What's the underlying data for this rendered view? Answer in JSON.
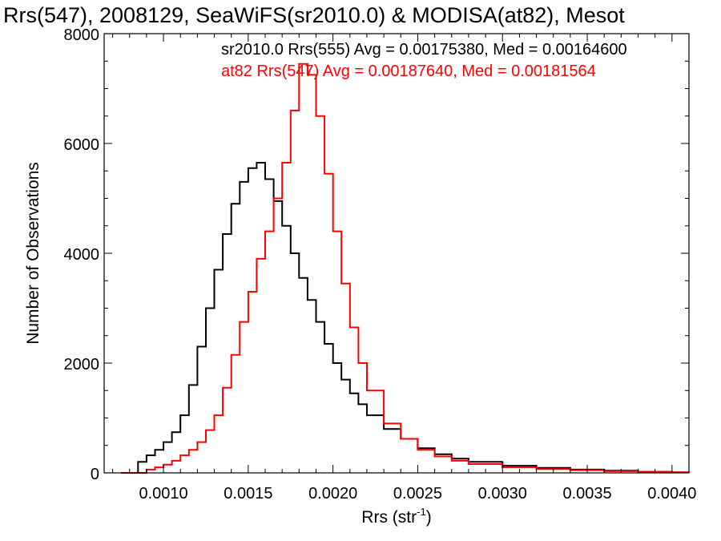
{
  "chart_data": {
    "type": "line",
    "title": "Rrs(547), 2008129, SeaWiFS(sr2010.0) & MODISA(at82), Mesot",
    "xlabel": "Rrs (str",
    "xlabel_sup": "-1",
    "xlabel_close": ")",
    "ylabel": "Number of Observations",
    "xlim": [
      0.00065,
      0.0041
    ],
    "ylim": [
      0,
      8000
    ],
    "x_ticks": [
      0.001,
      0.0015,
      0.002,
      0.0025,
      0.003,
      0.0035,
      0.004
    ],
    "x_tick_labels": [
      "0.0010",
      "0.0015",
      "0.0020",
      "0.0025",
      "0.0030",
      "0.0035",
      "0.0040"
    ],
    "y_ticks": [
      0,
      2000,
      4000,
      6000,
      8000
    ],
    "y_tick_labels": [
      "0",
      "2000",
      "4000",
      "6000",
      "8000"
    ],
    "grid": false,
    "legend_position": "top-right",
    "series": [
      {
        "name": "sr2010.0 Rrs(555) Avg = 0.00175380, Med = 0.00164600",
        "color": "#000000",
        "x": [
          0.00075,
          0.0008,
          0.00085,
          0.0009,
          0.00095,
          0.001,
          0.00105,
          0.0011,
          0.00115,
          0.0012,
          0.00125,
          0.0013,
          0.00135,
          0.0014,
          0.00145,
          0.0015,
          0.00155,
          0.0016,
          0.00165,
          0.0017,
          0.00175,
          0.0018,
          0.00185,
          0.0019,
          0.00195,
          0.002,
          0.00205,
          0.0021,
          0.00215,
          0.0022,
          0.0023,
          0.0024,
          0.0025,
          0.0026,
          0.0027,
          0.0028,
          0.003,
          0.0032,
          0.0034,
          0.0036,
          0.0038,
          0.004,
          0.0041
        ],
        "values": [
          0,
          0,
          200,
          320,
          420,
          560,
          740,
          1050,
          1600,
          2300,
          3000,
          3700,
          4350,
          4900,
          5300,
          5550,
          5650,
          5350,
          4950,
          4500,
          4000,
          3550,
          3150,
          2750,
          2350,
          2000,
          1700,
          1450,
          1250,
          1050,
          800,
          620,
          450,
          340,
          260,
          200,
          130,
          90,
          60,
          40,
          20,
          10,
          0
        ]
      },
      {
        "name": "at82 Rrs(547) Avg = 0.00187640, Med = 0.00181564",
        "color": "#ff0000",
        "x": [
          0.00075,
          0.0008,
          0.00085,
          0.0009,
          0.00095,
          0.001,
          0.00105,
          0.0011,
          0.00115,
          0.0012,
          0.00125,
          0.0013,
          0.00135,
          0.0014,
          0.00145,
          0.0015,
          0.00155,
          0.0016,
          0.00165,
          0.0017,
          0.00175,
          0.0018,
          0.00185,
          0.0019,
          0.00195,
          0.002,
          0.00205,
          0.0021,
          0.00215,
          0.0022,
          0.0023,
          0.0024,
          0.0025,
          0.0026,
          0.0027,
          0.0028,
          0.003,
          0.0032,
          0.0034,
          0.0036,
          0.0038,
          0.004,
          0.0041
        ],
        "values": [
          0,
          0,
          0,
          60,
          100,
          150,
          220,
          320,
          420,
          560,
          780,
          1050,
          1550,
          2150,
          2750,
          3300,
          3900,
          4400,
          5000,
          5650,
          6600,
          7450,
          7250,
          6500,
          5450,
          4400,
          3450,
          2650,
          2000,
          1500,
          900,
          620,
          420,
          300,
          220,
          160,
          100,
          70,
          50,
          30,
          20,
          10,
          0
        ]
      }
    ]
  }
}
